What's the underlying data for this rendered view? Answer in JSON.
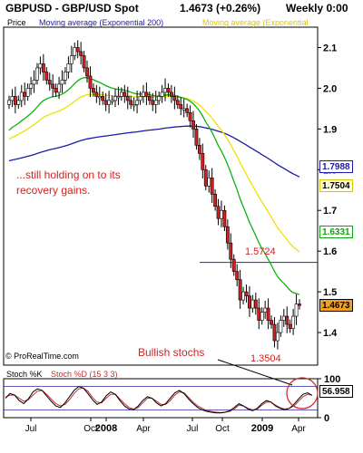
{
  "header": {
    "symbol": "GBPUSD",
    "separator": "-",
    "instrument": "GBP/USD Spot",
    "price": "1.4673",
    "change": "(+0.26%)",
    "period": "Weekly",
    "time": "0:00"
  },
  "legend": {
    "price": "Price",
    "ma200": "Moving average (Exponential 200)",
    "ma_yellow": "Moving average (Exponential",
    "stoch_k": "Stoch %K",
    "stoch_d": "Stoch %D (15 3 3)"
  },
  "annotations": {
    "comment_line1": "...still holding on to its",
    "comment_line2": "recovery gains.",
    "bullish": "Bullish stochs",
    "high_level": "1.5724",
    "low_level": "1.3504"
  },
  "price_boxes": {
    "ma200": "1.7988",
    "ma_yellow": "1.7504",
    "ma_green": "1.6331",
    "last": "1.4673",
    "stoch": "56.958"
  },
  "watermark": "© ProRealTime.com",
  "colors": {
    "candle_up": "#ffffff",
    "candle_down": "#d22020",
    "ma200": "#1a1aa8",
    "ma_yellow": "#f0e000",
    "ma_green": "#10b010",
    "level_line": "#2a2aa0",
    "annotation": "#d42020",
    "stoch_k": "#000000",
    "stoch_d": "#c03030"
  },
  "chart_data": [
    {
      "type": "candlestick",
      "title": "GBPUSD - GBP/USD Spot",
      "ylabel": "Price",
      "ylim": [
        1.32,
        2.15
      ],
      "yticks": [
        1.4,
        1.5,
        1.6,
        1.7,
        1.8,
        1.9,
        2.0,
        2.1
      ],
      "xticks": [
        "Jul",
        "Oct",
        "2008",
        "Apr",
        "Jul",
        "Oct",
        "2009",
        "Apr"
      ],
      "x_start": "2007-03",
      "x_end": "2009-04",
      "close": [
        1.97,
        1.98,
        1.96,
        1.97,
        1.99,
        1.98,
        2.0,
        2.01,
        2.02,
        2.05,
        2.06,
        2.04,
        2.02,
        2.01,
        2.0,
        1.99,
        2.01,
        2.02,
        2.04,
        2.06,
        2.08,
        2.1,
        2.09,
        2.08,
        2.05,
        2.03,
        2.0,
        1.99,
        1.98,
        1.98,
        1.97,
        1.96,
        1.97,
        1.97,
        1.98,
        1.98,
        1.99,
        1.98,
        1.97,
        1.96,
        1.96,
        1.97,
        1.98,
        1.99,
        1.98,
        1.97,
        1.96,
        1.97,
        1.98,
        1.99,
        2.0,
        1.99,
        1.98,
        1.97,
        1.96,
        1.95,
        1.95,
        1.94,
        1.92,
        1.9,
        1.86,
        1.84,
        1.8,
        1.76,
        1.78,
        1.74,
        1.71,
        1.68,
        1.7,
        1.66,
        1.62,
        1.58,
        1.55,
        1.53,
        1.48,
        1.5,
        1.49,
        1.46,
        1.48,
        1.46,
        1.43,
        1.45,
        1.46,
        1.43,
        1.42,
        1.38,
        1.4,
        1.43,
        1.44,
        1.42,
        1.41,
        1.44,
        1.47,
        1.4673
      ],
      "series": [
        {
          "name": "Moving average (Exponential 200)",
          "start": 1.82,
          "end": 1.7988
        },
        {
          "name": "Moving average (Exponential",
          "start": 1.87,
          "end": 1.7504
        },
        {
          "name": "",
          "start": 1.89,
          "end": 1.6331
        }
      ],
      "levels": [
        {
          "label": "1.5724",
          "value": 1.5724
        },
        {
          "label": "1.3504",
          "value": 1.3504
        }
      ],
      "last_price": 1.4673
    },
    {
      "type": "line",
      "title": "Stoch %K Stoch %D (15 3 3)",
      "ylim": [
        0,
        100
      ],
      "yticks": [
        0,
        100
      ],
      "bands": [
        20,
        80
      ],
      "series": [
        {
          "name": "Stoch %K",
          "values": [
            50,
            62,
            58,
            44,
            36,
            48,
            66,
            74,
            70,
            56,
            42,
            30,
            26,
            38,
            54,
            70,
            80,
            76,
            62,
            46,
            34,
            40,
            56,
            66,
            60,
            44,
            30,
            22,
            20,
            30,
            44,
            54,
            50,
            38,
            30,
            36,
            50,
            64,
            70,
            62,
            48,
            36,
            26,
            20,
            16,
            14,
            12,
            12,
            14,
            18,
            26,
            36,
            30,
            22,
            18,
            24,
            36,
            44,
            40,
            30,
            24,
            20,
            24,
            34,
            48,
            60,
            64,
            57
          ]
        },
        {
          "name": "Stoch %D (15 3 3)",
          "values": [
            52,
            58,
            58,
            50,
            42,
            46,
            58,
            68,
            70,
            60,
            48,
            36,
            30,
            34,
            46,
            62,
            74,
            76,
            68,
            52,
            40,
            38,
            50,
            60,
            60,
            48,
            36,
            26,
            22,
            26,
            38,
            50,
            50,
            42,
            34,
            34,
            44,
            58,
            66,
            64,
            52,
            40,
            30,
            24,
            18,
            16,
            14,
            13,
            14,
            16,
            22,
            32,
            30,
            24,
            20,
            22,
            32,
            40,
            40,
            32,
            26,
            22,
            24,
            30,
            42,
            54,
            60,
            58
          ]
        }
      ],
      "last_value": 56.958
    }
  ]
}
